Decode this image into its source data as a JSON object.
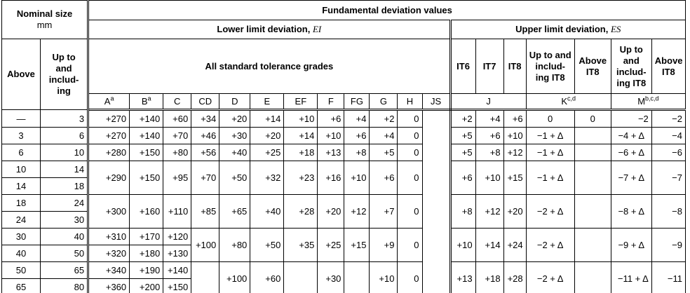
{
  "header": {
    "nominal_size": "Nominal size",
    "unit": "mm",
    "fundamental": "Fundamental deviation values",
    "lower": "Lower limit deviation,",
    "lower_symbol": "EI",
    "upper": "Upper limit deviation,",
    "upper_symbol": "ES",
    "above": "Above",
    "up_to": "Up to and includ-ing",
    "all_grades": "All standard tolerance grades",
    "it6": "IT6",
    "it7": "IT7",
    "it8": "IT8",
    "k_up_to_it8": "Up to and includ-ing IT8",
    "k_above_it8": "Above IT8",
    "m_up_to_it8": "Up to and includ-ing IT8",
    "m_above_it8": "Above IT8"
  },
  "columns": [
    {
      "letter": "A",
      "note": "a"
    },
    {
      "letter": "B",
      "note": "a"
    },
    {
      "letter": "C"
    },
    {
      "letter": "CD"
    },
    {
      "letter": "D"
    },
    {
      "letter": "E"
    },
    {
      "letter": "EF"
    },
    {
      "letter": "F"
    },
    {
      "letter": "FG"
    },
    {
      "letter": "G"
    },
    {
      "letter": "H"
    },
    {
      "letter": "JS"
    },
    {
      "letter": "J"
    },
    {
      "letter": "K",
      "note": "c,d"
    },
    {
      "letter": "M",
      "note": "b,c,d"
    }
  ],
  "rows": [
    [
      "—",
      "3",
      "+270",
      "+140",
      "+60",
      "+34",
      "+20",
      "+14",
      "+10",
      "+6",
      "+4",
      "+2",
      "0",
      "+2",
      "+4",
      "+6",
      "0",
      "0",
      "−2",
      "−2"
    ],
    [
      "3",
      "6",
      "+270",
      "+140",
      "+70",
      "+46",
      "+30",
      "+20",
      "+14",
      "+10",
      "+6",
      "+4",
      "0",
      "+5",
      "+6",
      "+10",
      "−1 + Δ",
      "−4 + Δ",
      "−4"
    ],
    [
      "6",
      "10",
      "+280",
      "+150",
      "+80",
      "+56",
      "+40",
      "+25",
      "+18",
      "+13",
      "+8",
      "+5",
      "0",
      "+5",
      "+8",
      "+12",
      "−1 + Δ",
      "−6 + Δ",
      "−6"
    ],
    [
      "10",
      "14",
      "+290",
      "+150",
      "+95",
      "+70",
      "+50",
      "+32",
      "+23",
      "+16",
      "+10",
      "+6",
      "0",
      "+6",
      "+10",
      "+15",
      "−1 + Δ",
      "−7 + Δ",
      "−7"
    ],
    [
      "14",
      "18"
    ],
    [
      "18",
      "24",
      "+300",
      "+160",
      "+110",
      "+85",
      "+65",
      "+40",
      "+28",
      "+20",
      "+12",
      "+7",
      "0",
      "+8",
      "+12",
      "+20",
      "−2 + Δ",
      "−8 + Δ",
      "−8"
    ],
    [
      "24",
      "30"
    ],
    [
      "30",
      "40",
      "+310",
      "+170",
      "+120",
      "+100",
      "+80",
      "+50",
      "+35",
      "+25",
      "+15",
      "+9",
      "0",
      "+10",
      "+14",
      "+24",
      "−2 + Δ",
      "−9 + Δ",
      "−9"
    ],
    [
      "40",
      "50",
      "+320",
      "+180",
      "+130"
    ],
    [
      "50",
      "65",
      "+340",
      "+190",
      "+140",
      "+100",
      "+60",
      "+30",
      "+10",
      "0",
      "+13",
      "+18",
      "+28",
      "−2 + Δ",
      "−11 + Δ",
      "−11"
    ],
    [
      "65",
      "80",
      "+360",
      "+200",
      "+150"
    ]
  ]
}
